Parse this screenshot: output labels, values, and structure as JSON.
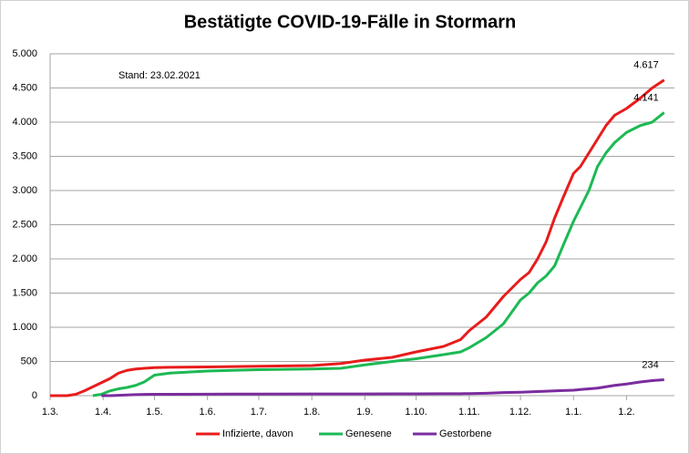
{
  "chart_data": {
    "type": "line",
    "title": "Bestätigte COVID-19-Fälle in Stormarn",
    "annotation": "Stand: 23.02.2021",
    "x": [
      0,
      10,
      15,
      20,
      25,
      30,
      35,
      40,
      45,
      50,
      55,
      61,
      70,
      92,
      122,
      153,
      170,
      184,
      200,
      214,
      230,
      240,
      245,
      255,
      265,
      275,
      280,
      285,
      290,
      295,
      300,
      306,
      310,
      315,
      320,
      325,
      330,
      337,
      345,
      352,
      359
    ],
    "xlim": [
      0,
      365
    ],
    "xticks": [
      {
        "value": 0,
        "label": "1.3."
      },
      {
        "value": 31,
        "label": "1.4."
      },
      {
        "value": 61,
        "label": "1.5."
      },
      {
        "value": 92,
        "label": "1.6."
      },
      {
        "value": 122,
        "label": "1.7."
      },
      {
        "value": 153,
        "label": "1.8."
      },
      {
        "value": 184,
        "label": "1.9."
      },
      {
        "value": 214,
        "label": "1.10."
      },
      {
        "value": 245,
        "label": "1.11."
      },
      {
        "value": 275,
        "label": "1.12."
      },
      {
        "value": 306,
        "label": "1.1."
      },
      {
        "value": 337,
        "label": "1.2."
      }
    ],
    "ylim": [
      0,
      5000
    ],
    "yticks": [
      0,
      {
        "value": 500,
        "label": "500"
      },
      {
        "value": 1000,
        "label": "1.000"
      },
      {
        "value": 1500,
        "label": "1.500"
      },
      {
        "value": 2000,
        "label": "2.000"
      },
      {
        "value": 2500,
        "label": "2.500"
      },
      {
        "value": 3000,
        "label": "3.000"
      },
      {
        "value": 3500,
        "label": "3.500"
      },
      {
        "value": 4000,
        "label": "4.000"
      },
      {
        "value": 4500,
        "label": "4.500"
      },
      {
        "value": 5000,
        "label": "5.000"
      }
    ],
    "grid": true,
    "legend": "bottom",
    "series": [
      {
        "name": "Infizierte, davon",
        "color": "#e81c1c",
        "values": [
          0,
          0,
          20,
          70,
          130,
          190,
          250,
          330,
          370,
          390,
          400,
          410,
          415,
          420,
          430,
          440,
          470,
          520,
          560,
          640,
          720,
          820,
          950,
          1150,
          1450,
          1700,
          1800,
          2000,
          2250,
          2600,
          2900,
          3250,
          3350,
          3550,
          3750,
          3950,
          4100,
          4200,
          4350,
          4500,
          4617
        ],
        "value_labels": [
          null,
          null,
          null,
          null,
          null,
          null,
          null,
          null,
          null,
          null,
          null,
          null,
          null,
          null,
          null,
          null,
          null,
          null,
          null,
          null,
          null,
          null,
          null,
          null,
          null,
          null,
          null,
          null,
          null,
          null,
          null,
          null,
          null,
          null,
          null,
          null,
          null,
          null,
          null,
          null,
          "4.617"
        ]
      },
      {
        "name": "Genesene",
        "color": "#1db954",
        "values": [
          null,
          null,
          null,
          null,
          0,
          20,
          70,
          100,
          120,
          150,
          200,
          300,
          330,
          360,
          380,
          390,
          400,
          450,
          500,
          540,
          600,
          640,
          700,
          850,
          1050,
          1400,
          1500,
          1650,
          1750,
          1900,
          2200,
          2550,
          2750,
          3000,
          3350,
          3550,
          3700,
          3850,
          3950,
          4000,
          4141
        ],
        "value_labels": [
          null,
          null,
          null,
          null,
          null,
          null,
          null,
          null,
          null,
          null,
          null,
          null,
          null,
          null,
          null,
          null,
          null,
          null,
          null,
          null,
          null,
          null,
          null,
          null,
          null,
          null,
          null,
          null,
          null,
          null,
          null,
          null,
          null,
          null,
          null,
          null,
          null,
          null,
          null,
          null,
          "4.141"
        ]
      },
      {
        "name": "Gestorbene",
        "color": "#7b2c9e",
        "values": [
          null,
          null,
          null,
          null,
          null,
          0,
          0,
          5,
          10,
          15,
          18,
          20,
          20,
          22,
          24,
          25,
          25,
          25,
          26,
          27,
          28,
          29,
          30,
          35,
          45,
          50,
          55,
          60,
          65,
          70,
          75,
          80,
          90,
          100,
          110,
          130,
          150,
          170,
          200,
          220,
          234
        ],
        "value_labels": [
          null,
          null,
          null,
          null,
          null,
          null,
          null,
          null,
          null,
          null,
          null,
          null,
          null,
          null,
          null,
          null,
          null,
          null,
          null,
          null,
          null,
          null,
          null,
          null,
          null,
          null,
          null,
          null,
          null,
          null,
          null,
          null,
          null,
          null,
          null,
          null,
          null,
          null,
          null,
          null,
          "234"
        ]
      }
    ]
  }
}
